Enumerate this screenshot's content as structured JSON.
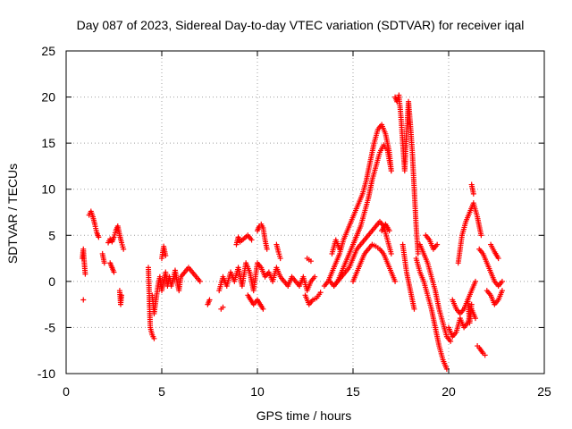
{
  "chart_data": {
    "type": "scatter",
    "title": "Day 087 of 2023, Sidereal Day-to-day VTEC variation (SDTVAR) for receiver iqal",
    "xlabel": "GPS time / hours",
    "ylabel": "SDTVAR / TECUs",
    "xlim": [
      0,
      25
    ],
    "ylim": [
      -10,
      25
    ],
    "xticks": [
      0,
      5,
      10,
      15,
      20,
      25
    ],
    "yticks": [
      -10,
      -5,
      0,
      5,
      10,
      15,
      20,
      25
    ],
    "grid": true,
    "marker": "+",
    "color": "#ff0000",
    "series": [
      {
        "name": "SDTVAR",
        "segments": [
          {
            "x": [
              0.85,
              0.9,
              0.95,
              1.0
            ],
            "y": [
              2.5,
              3.5,
              2.0,
              0.8
            ]
          },
          {
            "x": [
              0.9
            ],
            "y": [
              -2.0
            ]
          },
          {
            "x": [
              1.2,
              1.3,
              1.4,
              1.5,
              1.6,
              1.7
            ],
            "y": [
              7.2,
              7.6,
              7.0,
              6.2,
              5.3,
              4.8
            ]
          },
          {
            "x": [
              1.9,
              2.0
            ],
            "y": [
              3.0,
              2.0
            ]
          },
          {
            "x": [
              2.2,
              2.3,
              2.4,
              2.5,
              2.6,
              2.7,
              2.8,
              2.9,
              3.0
            ],
            "y": [
              4.2,
              4.6,
              4.3,
              4.8,
              5.5,
              6.0,
              5.0,
              4.2,
              3.5
            ]
          },
          {
            "x": [
              2.3,
              2.4,
              2.5
            ],
            "y": [
              2.0,
              1.5,
              1.0
            ]
          },
          {
            "x": [
              2.8,
              2.85,
              2.9
            ],
            "y": [
              -1.0,
              -2.5,
              -1.5
            ]
          },
          {
            "x": [
              4.3,
              4.4,
              4.5,
              4.6
            ],
            "y": [
              1.5,
              -5.0,
              -5.8,
              -6.2
            ]
          },
          {
            "x": [
              4.5,
              4.6,
              4.7,
              4.8,
              4.9,
              5.0,
              5.1,
              5.2,
              5.3,
              5.4,
              5.5,
              5.6,
              5.7,
              5.8,
              5.9,
              6.0,
              6.2,
              6.4,
              6.6,
              6.8,
              7.0
            ],
            "y": [
              -1.5,
              -3.5,
              -2.0,
              -0.5,
              0.5,
              -1.0,
              0.0,
              1.0,
              -0.5,
              0.5,
              -0.5,
              0.3,
              1.2,
              0.0,
              -1.0,
              0.5,
              1.0,
              1.5,
              1.0,
              0.5,
              0.0
            ]
          },
          {
            "x": [
              5.0,
              5.1,
              5.2
            ],
            "y": [
              2.5,
              3.8,
              2.8
            ]
          },
          {
            "x": [
              7.4,
              7.5
            ],
            "y": [
              -2.5,
              -2.0
            ]
          },
          {
            "x": [
              8.0,
              8.2,
              8.4,
              8.6,
              8.8,
              9.0,
              9.2,
              9.4,
              9.6,
              9.8,
              10.0,
              10.2,
              10.4,
              10.6,
              10.8,
              11.0,
              11.2,
              11.4,
              11.6,
              11.8,
              12.0,
              12.2,
              12.4,
              12.6,
              12.8,
              13.0
            ],
            "y": [
              -1.0,
              0.5,
              -0.5,
              1.0,
              0.0,
              1.5,
              -0.5,
              2.0,
              1.0,
              -1.0,
              2.0,
              1.5,
              0.5,
              1.0,
              0.0,
              1.5,
              0.5,
              0.0,
              -0.5,
              0.5,
              0.0,
              -0.5,
              0.5,
              -1.0,
              0.0,
              0.5
            ]
          },
          {
            "x": [
              8.1,
              8.2
            ],
            "y": [
              -3.0,
              -2.8
            ]
          },
          {
            "x": [
              8.9,
              9.0,
              9.1,
              9.5,
              9.7
            ],
            "y": [
              4.0,
              4.8,
              4.3,
              5.0,
              4.5
            ]
          },
          {
            "x": [
              10.0,
              10.1,
              10.2,
              10.3,
              10.4,
              10.5
            ],
            "y": [
              5.5,
              6.0,
              6.2,
              5.8,
              4.5,
              3.5
            ]
          },
          {
            "x": [
              11.0,
              11.1,
              11.2
            ],
            "y": [
              4.0,
              3.2,
              2.5
            ]
          },
          {
            "x": [
              9.5,
              9.8,
              10.0,
              10.3
            ],
            "y": [
              -1.5,
              -2.5,
              -2.0,
              -3.0
            ]
          },
          {
            "x": [
              12.5,
              12.7,
              12.9,
              13.1,
              13.3
            ],
            "y": [
              -1.5,
              -2.5,
              -2.0,
              -1.8,
              -1.2
            ]
          },
          {
            "x": [
              12.6,
              12.8
            ],
            "y": [
              2.5,
              2.2
            ]
          },
          {
            "x": [
              13.5,
              13.7,
              13.9,
              14.1,
              14.3,
              14.5,
              14.7,
              14.9,
              15.1,
              15.3,
              15.5,
              15.7,
              15.9,
              16.1,
              16.3,
              16.5,
              16.7,
              16.9,
              17.0
            ],
            "y": [
              -0.5,
              0.0,
              1.0,
              2.0,
              3.0,
              4.5,
              5.5,
              6.5,
              7.5,
              8.5,
              9.5,
              11.0,
              13.0,
              15.0,
              16.5,
              17.0,
              16.0,
              14.0,
              12.0
            ]
          },
          {
            "x": [
              14.0,
              14.2,
              14.4,
              14.6,
              14.8,
              15.0,
              15.2,
              15.4,
              15.6,
              15.8,
              16.0,
              16.2,
              16.4,
              16.6,
              16.8,
              17.0
            ],
            "y": [
              -0.5,
              0.0,
              1.0,
              2.0,
              3.0,
              4.0,
              5.0,
              6.0,
              7.5,
              9.0,
              11.0,
              12.5,
              14.0,
              14.8,
              14.2,
              12.0
            ]
          },
          {
            "x": [
              13.8,
              14.0,
              14.2,
              14.4,
              14.6,
              14.8,
              15.0,
              15.2,
              15.4,
              15.6,
              15.8,
              16.0,
              16.2,
              16.4,
              16.6,
              16.8,
              17.0
            ],
            "y": [
              0.0,
              -0.5,
              0.0,
              0.5,
              1.0,
              1.5,
              2.5,
              3.5,
              4.0,
              4.5,
              5.0,
              5.5,
              6.0,
              6.5,
              6.0,
              4.5,
              3.0
            ]
          },
          {
            "x": [
              15.0,
              15.2,
              15.4,
              15.6,
              15.8,
              16.0,
              16.2,
              16.4,
              16.6,
              16.8,
              17.0,
              17.2
            ],
            "y": [
              0.0,
              1.0,
              2.0,
              3.0,
              3.5,
              4.0,
              3.8,
              3.5,
              3.0,
              2.0,
              1.0,
              0.0
            ]
          },
          {
            "x": [
              13.9,
              14.1,
              14.3
            ],
            "y": [
              3.0,
              4.5,
              3.5
            ]
          },
          {
            "x": [
              16.5,
              16.7,
              16.9
            ],
            "y": [
              5.5,
              6.2,
              5.5
            ]
          },
          {
            "x": [
              17.2,
              17.3,
              17.4,
              17.5,
              17.6,
              17.7,
              17.8,
              17.9,
              18.0,
              18.1,
              18.2,
              18.3,
              18.4
            ],
            "y": [
              20.0,
              19.5,
              20.2,
              18.0,
              15.0,
              12.0,
              16.0,
              19.5,
              17.0,
              14.0,
              10.0,
              6.0,
              3.0
            ]
          },
          {
            "x": [
              17.6,
              17.8,
              18.0,
              18.2
            ],
            "y": [
              4.0,
              1.0,
              -1.0,
              -3.0
            ]
          },
          {
            "x": [
              18.3,
              18.5,
              18.7,
              18.9,
              19.1,
              19.3,
              19.5,
              19.7,
              19.9
            ],
            "y": [
              2.5,
              1.0,
              0.0,
              -1.5,
              -3.0,
              -5.0,
              -7.0,
              -8.5,
              -9.5
            ]
          },
          {
            "x": [
              18.5,
              18.7,
              18.9,
              19.1,
              19.3,
              19.5,
              19.7,
              19.9,
              20.1
            ],
            "y": [
              4.0,
              3.0,
              2.0,
              0.5,
              -1.0,
              -3.0,
              -4.5,
              -6.0,
              -6.5
            ]
          },
          {
            "x": [
              18.8,
              19.0,
              19.2,
              19.4
            ],
            "y": [
              5.0,
              4.5,
              3.5,
              4.0
            ]
          },
          {
            "x": [
              20.0,
              20.2,
              20.4,
              20.6,
              20.8,
              21.0,
              21.2,
              21.4
            ],
            "y": [
              -5.0,
              -6.0,
              -5.5,
              -4.0,
              -5.0,
              -4.5,
              -3.0,
              -4.0
            ]
          },
          {
            "x": [
              20.2,
              20.4,
              20.6,
              20.8,
              21.0,
              21.2,
              21.4
            ],
            "y": [
              -2.0,
              -3.0,
              -3.5,
              -3.0,
              -2.0,
              -1.0,
              0.0
            ]
          },
          {
            "x": [
              20.5,
              20.7,
              20.9,
              21.1,
              21.3,
              21.5,
              21.7
            ],
            "y": [
              2.0,
              5.0,
              6.5,
              7.5,
              8.5,
              7.0,
              5.0
            ]
          },
          {
            "x": [
              21.2,
              21.3
            ],
            "y": [
              10.5,
              9.5
            ]
          },
          {
            "x": [
              21.0,
              21.1,
              21.2
            ],
            "y": [
              -2.0,
              -4.5,
              -2.5
            ]
          },
          {
            "x": [
              21.5,
              21.6,
              21.7,
              21.8,
              21.9
            ],
            "y": [
              -7.0,
              -7.2,
              -7.5,
              -7.8,
              -8.0
            ]
          },
          {
            "x": [
              21.6,
              21.8,
              22.0,
              22.2,
              22.4,
              22.6,
              22.8
            ],
            "y": [
              3.5,
              3.0,
              2.0,
              1.0,
              0.0,
              -0.5,
              0.0
            ]
          },
          {
            "x": [
              22.0,
              22.2,
              22.4,
              22.6,
              22.8
            ],
            "y": [
              -1.0,
              -1.5,
              -2.5,
              -2.0,
              -1.0
            ]
          },
          {
            "x": [
              22.2,
              22.4,
              22.6
            ],
            "y": [
              4.0,
              3.2,
              2.5
            ]
          }
        ]
      }
    ]
  }
}
